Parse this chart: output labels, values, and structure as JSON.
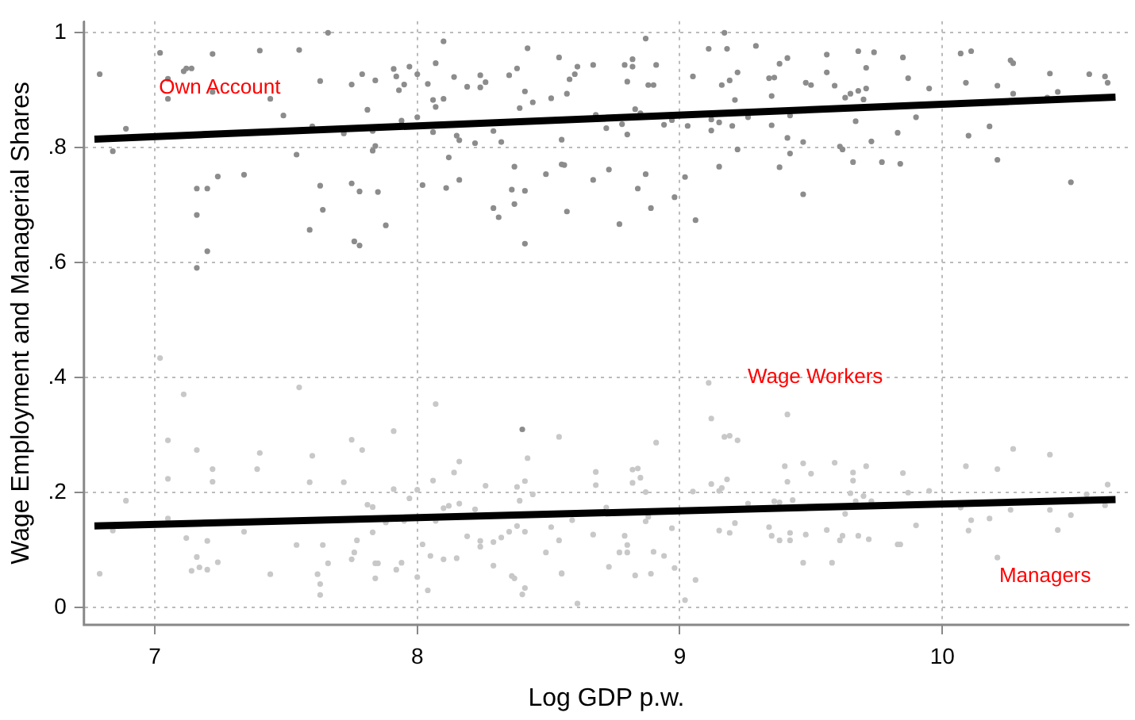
{
  "chart_data": {
    "type": "scatter",
    "xlabel": "Log GDP p.w.",
    "ylabel": "Wage Employment and Managerial Shares",
    "xlim": [
      6.73,
      10.71
    ],
    "ylim": [
      -0.03,
      1.02
    ],
    "xticks": [
      7,
      8,
      9,
      10
    ],
    "yticks": [
      0,
      {
        "value": 0.2,
        "label": ".2"
      },
      {
        "value": 0.4,
        "label": ".4"
      },
      {
        "value": 0.6,
        "label": ".6"
      },
      {
        "value": 0.8,
        "label": ".8"
      },
      1
    ],
    "grid": true,
    "legend": false,
    "marker": "circle",
    "annotations": [
      "Own Account",
      "Wage Workers",
      "Managers"
    ],
    "series": [
      {
        "color": "#8c8c8c",
        "x": [
          6.79,
          6.84,
          6.89,
          7.02,
          7.05,
          7.05,
          7.11,
          7.12,
          7.14,
          7.22,
          7.16,
          7.16,
          7.16,
          7.2,
          7.2,
          7.24,
          7.34,
          7.22,
          7.4,
          7.44,
          7.49,
          7.55,
          7.54,
          7.59,
          7.6,
          7.63,
          7.63,
          7.64,
          7.66,
          7.72,
          7.75,
          7.75,
          7.76,
          7.78,
          7.78,
          7.79,
          7.81,
          7.83,
          7.83,
          7.84,
          7.84,
          7.85,
          7.88,
          7.91,
          7.92,
          7.93,
          7.94,
          7.95,
          7.97,
          8.0,
          8.0,
          8.02,
          8.04,
          8.06,
          8.06,
          8.07,
          8.07,
          8.1,
          8.1,
          8.11,
          8.12,
          8.14,
          8.15,
          8.16,
          8.16,
          8.19,
          8.22,
          8.24,
          8.24,
          8.26,
          8.29,
          8.29,
          8.31,
          8.32,
          8.35,
          8.36,
          8.37,
          8.37,
          8.38,
          8.39,
          8.41,
          8.41,
          8.41,
          8.42,
          8.44,
          8.49,
          8.51,
          8.54,
          8.55,
          8.55,
          8.58,
          8.6,
          8.61,
          8.57,
          8.56,
          8.57,
          8.67,
          8.67,
          8.68,
          8.72,
          8.73,
          8.77,
          8.78,
          8.79,
          8.8,
          8.8,
          8.82,
          8.82,
          8.83,
          8.84,
          8.85,
          8.87,
          8.87,
          8.88,
          8.89,
          8.9,
          8.91,
          8.94,
          8.97,
          8.98,
          9.03,
          9.02,
          9.05,
          9.06,
          9.11,
          9.12,
          9.12,
          9.15,
          9.15,
          9.16,
          9.17,
          9.18,
          9.19,
          9.2,
          9.21,
          9.22,
          9.22,
          9.26,
          9.29,
          9.34,
          9.35,
          9.35,
          9.36,
          9.38,
          9.38,
          9.41,
          9.41,
          9.42,
          9.42,
          9.47,
          9.47,
          9.48,
          9.5,
          9.56,
          9.56,
          9.59,
          9.61,
          9.62,
          9.63,
          9.65,
          9.66,
          9.67,
          9.68,
          9.68,
          9.7,
          9.71,
          9.71,
          9.73,
          9.74,
          9.77,
          9.83,
          9.84,
          9.85,
          9.87,
          9.9,
          9.95,
          10.07,
          10.09,
          10.1,
          10.11,
          10.18,
          10.21,
          10.21,
          10.26,
          10.27,
          10.27,
          10.4,
          10.41,
          10.44,
          10.49,
          10.56,
          10.62,
          10.63,
          8.4
        ],
        "values": [
          0.928,
          0.794,
          0.833,
          0.965,
          0.92,
          0.885,
          0.933,
          0.938,
          0.938,
          0.963,
          0.729,
          0.683,
          0.591,
          0.729,
          0.62,
          0.75,
          0.753,
          0.897,
          0.969,
          0.885,
          0.856,
          0.97,
          0.788,
          0.657,
          0.837,
          0.916,
          0.734,
          0.692,
          1.0,
          0.825,
          0.91,
          0.738,
          0.637,
          0.63,
          0.724,
          0.928,
          0.866,
          0.795,
          0.829,
          0.917,
          0.803,
          0.723,
          0.665,
          0.937,
          0.924,
          0.9,
          0.847,
          0.91,
          0.941,
          0.928,
          0.853,
          0.735,
          0.911,
          0.827,
          0.883,
          0.947,
          0.871,
          0.985,
          0.885,
          0.73,
          0.783,
          0.923,
          0.821,
          0.813,
          0.744,
          0.906,
          0.808,
          0.926,
          0.905,
          0.914,
          0.829,
          0.695,
          0.679,
          0.81,
          0.926,
          0.727,
          0.767,
          0.702,
          0.938,
          0.869,
          0.725,
          0.633,
          0.898,
          0.973,
          0.879,
          0.754,
          0.886,
          0.957,
          0.814,
          0.771,
          0.919,
          0.928,
          0.941,
          0.894,
          0.77,
          0.689,
          0.944,
          0.744,
          0.857,
          0.834,
          0.762,
          0.667,
          0.841,
          0.944,
          0.915,
          0.823,
          0.941,
          0.954,
          0.867,
          0.729,
          0.86,
          0.99,
          0.754,
          0.909,
          0.695,
          0.909,
          0.944,
          0.84,
          0.848,
          0.714,
          0.838,
          0.749,
          0.924,
          0.674,
          0.972,
          0.849,
          0.83,
          0.844,
          0.767,
          0.909,
          1.0,
          0.972,
          0.917,
          0.838,
          0.883,
          0.797,
          0.931,
          0.853,
          0.977,
          0.921,
          0.839,
          0.89,
          0.922,
          0.946,
          0.766,
          0.817,
          0.956,
          0.79,
          0.856,
          0.81,
          0.719,
          0.913,
          0.909,
          0.931,
          0.962,
          0.908,
          0.802,
          0.797,
          0.887,
          0.894,
          0.775,
          0.846,
          0.968,
          0.899,
          0.884,
          0.903,
          0.939,
          0.811,
          0.966,
          0.775,
          0.826,
          0.772,
          0.957,
          0.921,
          0.853,
          0.903,
          0.964,
          0.913,
          0.821,
          0.968,
          0.837,
          0.908,
          0.779,
          0.952,
          0.894,
          0.947,
          0.887,
          0.929,
          0.897,
          0.74,
          0.928,
          0.924,
          0.913,
          0.31
        ]
      },
      {
        "color": "#c8c8c8",
        "x": [
          6.79,
          6.84,
          6.89,
          7.02,
          7.05,
          7.05,
          7.05,
          7.11,
          7.12,
          7.14,
          7.16,
          7.16,
          7.17,
          7.2,
          7.2,
          7.22,
          7.22,
          7.24,
          7.34,
          7.39,
          7.4,
          7.44,
          7.54,
          7.55,
          7.59,
          7.6,
          7.62,
          7.63,
          7.63,
          7.64,
          7.66,
          7.72,
          7.75,
          7.76,
          7.75,
          7.77,
          7.79,
          7.81,
          7.83,
          7.83,
          7.84,
          7.85,
          7.84,
          7.88,
          7.91,
          7.91,
          7.92,
          7.94,
          7.95,
          7.97,
          8.0,
          8.0,
          8.02,
          8.04,
          8.05,
          8.06,
          8.07,
          8.07,
          8.1,
          8.1,
          8.12,
          8.14,
          8.15,
          8.16,
          8.16,
          8.19,
          8.22,
          8.26,
          8.24,
          8.24,
          8.29,
          8.29,
          8.32,
          8.35,
          8.36,
          8.37,
          8.38,
          8.38,
          8.39,
          8.41,
          8.41,
          8.4,
          8.41,
          8.42,
          8.44,
          8.49,
          8.51,
          8.54,
          8.54,
          8.55,
          8.55,
          8.61,
          8.59,
          8.67,
          8.68,
          8.68,
          8.72,
          8.73,
          8.77,
          8.79,
          8.8,
          8.8,
          8.82,
          8.82,
          8.83,
          8.84,
          8.85,
          8.87,
          8.87,
          8.88,
          8.89,
          8.9,
          8.91,
          8.94,
          8.97,
          8.98,
          9.02,
          9.05,
          9.06,
          9.11,
          9.12,
          9.12,
          9.15,
          9.15,
          9.16,
          9.17,
          9.18,
          9.19,
          9.19,
          9.21,
          9.22,
          9.26,
          9.34,
          9.35,
          9.36,
          9.38,
          9.38,
          9.4,
          9.41,
          9.41,
          9.42,
          9.42,
          9.43,
          9.47,
          9.47,
          9.48,
          9.5,
          9.56,
          9.58,
          9.59,
          9.61,
          9.62,
          9.63,
          9.65,
          9.66,
          9.66,
          9.67,
          9.68,
          9.7,
          9.71,
          9.72,
          9.73,
          9.83,
          9.84,
          9.85,
          9.87,
          9.9,
          9.95,
          10.07,
          10.09,
          10.1,
          10.11,
          10.18,
          10.21,
          10.21,
          10.26,
          10.27,
          10.41,
          10.41,
          10.44,
          10.49,
          10.55,
          10.62,
          10.63
        ],
        "values": [
          0.059,
          0.134,
          0.186,
          0.434,
          0.291,
          0.224,
          0.155,
          0.371,
          0.121,
          0.064,
          0.274,
          0.088,
          0.07,
          0.116,
          0.066,
          0.241,
          0.219,
          0.079,
          0.132,
          0.241,
          0.269,
          0.058,
          0.109,
          0.383,
          0.218,
          0.264,
          0.058,
          0.022,
          0.041,
          0.109,
          0.077,
          0.218,
          0.292,
          0.096,
          0.084,
          0.117,
          0.274,
          0.179,
          0.175,
          0.131,
          0.077,
          0.077,
          0.051,
          0.148,
          0.307,
          0.206,
          0.066,
          0.078,
          0.151,
          0.19,
          0.205,
          0.053,
          0.11,
          0.03,
          0.09,
          0.221,
          0.354,
          0.151,
          0.173,
          0.084,
          0.177,
          0.235,
          0.086,
          0.254,
          0.181,
          0.124,
          0.171,
          0.212,
          0.116,
          0.106,
          0.073,
          0.114,
          0.122,
          0.132,
          0.055,
          0.051,
          0.142,
          0.21,
          0.186,
          0.132,
          0.034,
          0.023,
          0.22,
          0.26,
          0.197,
          0.096,
          0.14,
          0.297,
          0.117,
          0.059,
          0.06,
          0.007,
          0.152,
          0.127,
          0.236,
          0.213,
          0.174,
          0.071,
          0.096,
          0.125,
          0.109,
          0.096,
          0.217,
          0.24,
          0.056,
          0.242,
          0.226,
          0.201,
          0.15,
          0.158,
          0.059,
          0.097,
          0.287,
          0.09,
          0.138,
          0.069,
          0.013,
          0.202,
          0.048,
          0.391,
          0.329,
          0.215,
          0.134,
          0.203,
          0.208,
          0.297,
          0.223,
          0.299,
          0.13,
          0.147,
          0.291,
          0.181,
          0.14,
          0.125,
          0.185,
          0.183,
          0.117,
          0.246,
          0.336,
          0.219,
          0.117,
          0.13,
          0.187,
          0.251,
          0.078,
          0.127,
          0.233,
          0.135,
          0.078,
          0.252,
          0.117,
          0.125,
          0.163,
          0.199,
          0.221,
          0.235,
          0.185,
          0.125,
          0.194,
          0.246,
          0.119,
          0.185,
          0.11,
          0.11,
          0.234,
          0.2,
          0.143,
          0.203,
          0.174,
          0.246,
          0.134,
          0.152,
          0.155,
          0.241,
          0.087,
          0.17,
          0.276,
          0.266,
          0.17,
          0.135,
          0.161,
          0.197,
          0.178,
          0.214
        ]
      },
      {
        "type": "line",
        "color": "#000000",
        "line_style": "solid",
        "marker": "none",
        "x": [
          6.77,
          10.66
        ],
        "values": [
          0.815,
          0.888
        ]
      },
      {
        "type": "line",
        "color": "#000000",
        "line_style": "solid",
        "marker": "none",
        "x": [
          6.77,
          10.66
        ],
        "values": [
          0.142,
          0.188
        ]
      }
    ]
  }
}
